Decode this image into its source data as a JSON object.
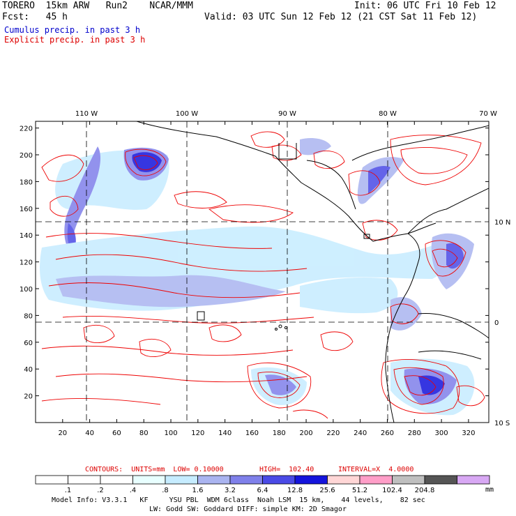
{
  "header": {
    "model": "TORERO  15km ARW   Run2    NCAR/MMM",
    "init": "Init: 06 UTC Fri 10 Feb 12",
    "fcst": "Fcst:   45 h",
    "valid": "Valid: 03 UTC Sun 12 Feb 12 (21 CST Sat 11 Feb 12)",
    "cumulus": "Cumulus precip. in past 3 h",
    "explicit": "Explicit precip. in past 3 h"
  },
  "colors": {
    "cumulus_text": "#0000cc",
    "explicit_text": "#dd0000",
    "contour": "#ee0000",
    "coast": "#000000"
  },
  "map": {
    "top_lon_labels": [
      "110 W",
      "100 W",
      "90 W",
      "80 W",
      "70 W"
    ],
    "right_lat_labels": [
      "10 N",
      "0",
      "10 S"
    ],
    "y_ticks": [
      "220",
      "200",
      "180",
      "160",
      "140",
      "120",
      "100",
      "80",
      "60",
      "40",
      "20"
    ],
    "x_ticks": [
      "20",
      "40",
      "60",
      "80",
      "100",
      "120",
      "140",
      "160",
      "180",
      "200",
      "220",
      "240",
      "260",
      "280",
      "300",
      "320"
    ],
    "x_range": [
      0,
      335
    ],
    "y_range": [
      0,
      225
    ]
  },
  "contours": {
    "units_label": "CONTOURS:  UNITS=mm  LOW= 0.10000",
    "high_label": "HIGH=  102.40",
    "interval_label": "INTERVAL=X  4.0000"
  },
  "colorbar": {
    "unit": "mm",
    "ticks": [
      ".1",
      ".2",
      ".4",
      ".8",
      "1.6",
      "3.2",
      "6.4",
      "12.8",
      "25.6",
      "51.2",
      "102.4",
      "204.8"
    ],
    "colors": [
      "#ffffff",
      "#ffffff",
      "#ffffff",
      "#e8ffff",
      "#c6ecff",
      "#aab4f0",
      "#7f80ea",
      "#4a4ae6",
      "#1414dc",
      "#ffd6d6",
      "#ff9ec8",
      "#bfbfbf",
      "#555555",
      "#d8a8f4"
    ]
  },
  "footer": {
    "line1": "Model Info: V3.3.1   KF     YSU PBL  WDM 6class  Noah LSM  15 km,    44 levels,    82 sec",
    "line2": "LW: Godd SW: Goddard DIFF: simple KM: 2D Smagor"
  }
}
